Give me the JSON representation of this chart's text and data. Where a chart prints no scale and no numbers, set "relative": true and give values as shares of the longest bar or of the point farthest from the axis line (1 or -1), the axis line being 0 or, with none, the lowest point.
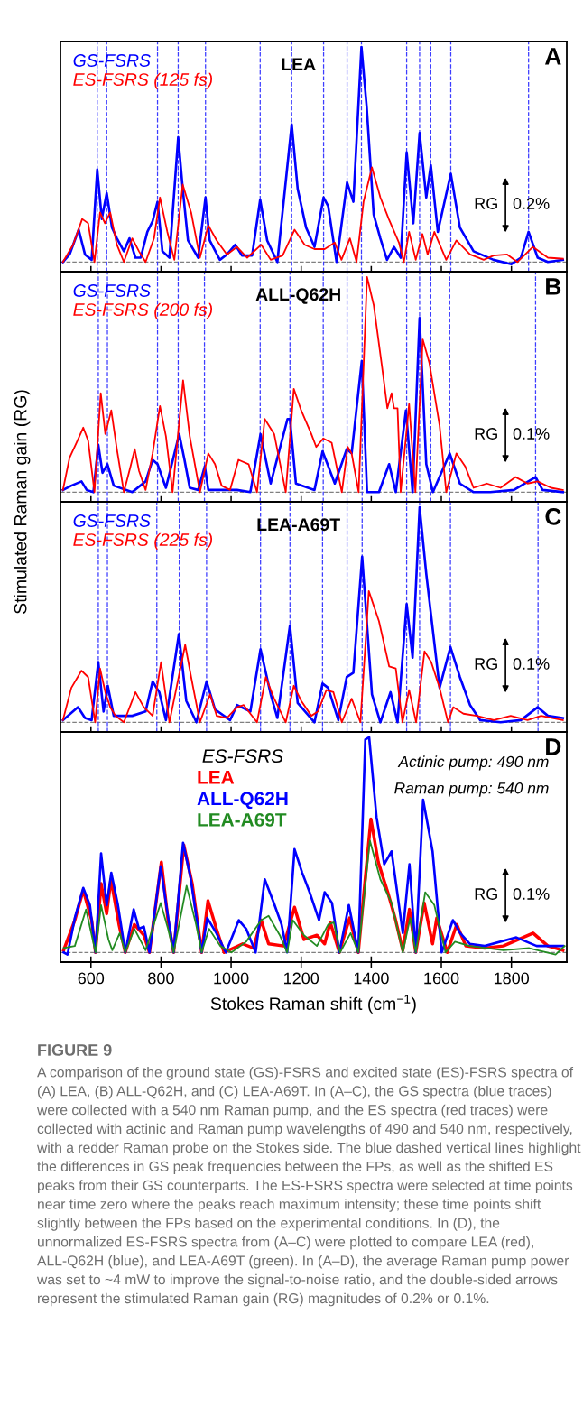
{
  "chart_data": [
    {
      "type": "line",
      "title": "LEA",
      "relative": true,
      "xlim": [
        513,
        1958
      ],
      "xticks": [
        600,
        800,
        1000,
        1200,
        1400,
        1600,
        1800
      ],
      "tick_labels": false,
      "legend": "top left",
      "marker": "none",
      "line_style": "solid",
      "grid": false,
      "annotations": [
        "A",
        "RG",
        "0.2%"
      ],
      "ref_lines": [
        {
          "axis": "y",
          "value": 0,
          "color": "#808080",
          "line_style": "dashed"
        },
        {
          "axis": "x",
          "value": 618,
          "color": "#3c3cff",
          "line_style": "dashed"
        },
        {
          "axis": "x",
          "value": 645,
          "color": "#3c3cff",
          "line_style": "dashed"
        },
        {
          "axis": "x",
          "value": 790,
          "color": "#3c3cff",
          "line_style": "dashed"
        },
        {
          "axis": "x",
          "value": 849,
          "color": "#3c3cff",
          "line_style": "dashed"
        },
        {
          "axis": "x",
          "value": 927,
          "color": "#3c3cff",
          "line_style": "dashed"
        },
        {
          "axis": "x",
          "value": 1083,
          "color": "#3c3cff",
          "line_style": "dashed"
        },
        {
          "axis": "x",
          "value": 1173,
          "color": "#3c3cff",
          "line_style": "dashed"
        },
        {
          "axis": "x",
          "value": 1264,
          "color": "#3c3cff",
          "line_style": "dashed"
        },
        {
          "axis": "x",
          "value": 1331,
          "color": "#3c3cff",
          "line_style": "dashed"
        },
        {
          "axis": "x",
          "value": 1372,
          "color": "#3c3cff",
          "line_style": "dashed"
        },
        {
          "axis": "x",
          "value": 1501,
          "color": "#3c3cff",
          "line_style": "dashed"
        },
        {
          "axis": "x",
          "value": 1538,
          "color": "#3c3cff",
          "line_style": "dashed"
        },
        {
          "axis": "x",
          "value": 1570,
          "color": "#3c3cff",
          "line_style": "dashed"
        },
        {
          "axis": "x",
          "value": 1627,
          "color": "#3c3cff",
          "line_style": "dashed"
        },
        {
          "axis": "x",
          "value": 1849,
          "color": "#3c3cff",
          "line_style": "dashed"
        }
      ],
      "series": [
        {
          "name": "GS-FSRS",
          "color": "#0000ff",
          "x": [
            520,
            539,
            565,
            583,
            602,
            618,
            631,
            645,
            660,
            674,
            694,
            710,
            727,
            742,
            761,
            776,
            790,
            804,
            824,
            849,
            862,
            877,
            906,
            927,
            939,
            968,
            988,
            1012,
            1031,
            1060,
            1083,
            1103,
            1132,
            1173,
            1190,
            1214,
            1238,
            1264,
            1277,
            1301,
            1331,
            1349,
            1372,
            1387,
            1407,
            1426,
            1445,
            1465,
            1484,
            1501,
            1520,
            1538,
            1557,
            1570,
            1590,
            1627,
            1653,
            1692,
            1749,
            1800,
            1827,
            1849,
            1875,
            1904,
            1947
          ],
          "values": [
            0,
            0.035,
            0.15,
            0.035,
            0.01,
            0.43,
            0.2,
            0.32,
            0.16,
            0.11,
            0.05,
            0.11,
            0.02,
            0.02,
            0.14,
            0.19,
            0.28,
            0.05,
            0.02,
            0.58,
            0.34,
            0.1,
            0.02,
            0.3,
            0.1,
            0.01,
            0.035,
            0.08,
            0.03,
            0.03,
            0.29,
            0.1,
            0,
            0.64,
            0.34,
            0.16,
            0.07,
            0.3,
            0.26,
            0,
            0.37,
            0.28,
            1.0,
            0.72,
            0.22,
            0.11,
            0.01,
            0.07,
            0.02,
            0.51,
            0.18,
            0.6,
            0.3,
            0.45,
            0.14,
            0.41,
            0.16,
            0.05,
            0.01,
            -0.01,
            0.02,
            0.14,
            0.02,
            0,
            0.01
          ]
        },
        {
          "name": "ES-FSRS (125 fs)",
          "color": "#ff0000",
          "x": [
            520,
            549,
            575,
            592,
            610,
            626,
            640,
            655,
            674,
            694,
            718,
            737,
            756,
            780,
            797,
            818,
            838,
            862,
            886,
            911,
            935,
            959,
            988,
            1017,
            1046,
            1086,
            1113,
            1147,
            1181,
            1210,
            1238,
            1267,
            1296,
            1315,
            1339,
            1358,
            1378,
            1402,
            1426,
            1450,
            1479,
            1493,
            1508,
            1527,
            1546,
            1561,
            1580,
            1614,
            1643,
            1682,
            1721,
            1749,
            1788,
            1817,
            1861,
            1904,
            1947
          ],
          "values": [
            0,
            0.08,
            0.2,
            0.18,
            0,
            0.23,
            0.18,
            0.23,
            0.08,
            0,
            0.11,
            0.05,
            0,
            0.11,
            0.3,
            0.14,
            0.01,
            0.36,
            0.23,
            0.02,
            0.17,
            0.1,
            0.035,
            0.07,
            0.02,
            0.08,
            0.01,
            0.03,
            0.15,
            0.08,
            0.06,
            0.06,
            0.09,
            0.01,
            0.11,
            0,
            0.28,
            0.44,
            0.3,
            0.2,
            0.09,
            0,
            0.14,
            0.01,
            0.13,
            0.035,
            0.14,
            0.01,
            0.1,
            0.035,
            0.01,
            0.03,
            0.035,
            0,
            0.07,
            0.02,
            0.015
          ]
        }
      ]
    },
    {
      "type": "line",
      "title": "ALL-Q62H",
      "ylabel": "Stimulated Raman gain (RG)",
      "relative": true,
      "xlim": [
        513,
        1958
      ],
      "xticks": [
        600,
        800,
        1000,
        1200,
        1400,
        1600,
        1800
      ],
      "tick_labels": false,
      "legend": "top left",
      "marker": "none",
      "line_style": "solid",
      "grid": false,
      "annotations": [
        "B",
        "RG",
        "0.1%"
      ],
      "ref_lines": [
        {
          "axis": "y",
          "value": 0,
          "color": "#808080",
          "line_style": "dashed"
        },
        {
          "axis": "x",
          "value": 621,
          "color": "#3c3cff",
          "line_style": "dashed"
        },
        {
          "axis": "x",
          "value": 647,
          "color": "#3c3cff",
          "line_style": "dashed"
        },
        {
          "axis": "x",
          "value": 790,
          "color": "#3c3cff",
          "line_style": "dashed"
        },
        {
          "axis": "x",
          "value": 849,
          "color": "#3c3cff",
          "line_style": "dashed"
        },
        {
          "axis": "x",
          "value": 924,
          "color": "#3c3cff",
          "line_style": "dashed"
        },
        {
          "axis": "x",
          "value": 1083,
          "color": "#3c3cff",
          "line_style": "dashed"
        },
        {
          "axis": "x",
          "value": 1168,
          "color": "#3c3cff",
          "line_style": "dashed"
        },
        {
          "axis": "x",
          "value": 1263,
          "color": "#3c3cff",
          "line_style": "dashed"
        },
        {
          "axis": "x",
          "value": 1331,
          "color": "#3c3cff",
          "line_style": "dashed"
        },
        {
          "axis": "x",
          "value": 1374,
          "color": "#3c3cff",
          "line_style": "dashed"
        },
        {
          "axis": "x",
          "value": 1501,
          "color": "#3c3cff",
          "line_style": "dashed"
        },
        {
          "axis": "x",
          "value": 1538,
          "color": "#3c3cff",
          "line_style": "dashed"
        },
        {
          "axis": "x",
          "value": 1570,
          "color": "#3c3cff",
          "line_style": "dashed"
        },
        {
          "axis": "x",
          "value": 1624,
          "color": "#3c3cff",
          "line_style": "dashed"
        },
        {
          "axis": "x",
          "value": 1869,
          "color": "#3c3cff",
          "line_style": "dashed"
        }
      ],
      "series": [
        {
          "name": "GS-FSRS",
          "color": "#0000ff",
          "x": [
            520,
            544,
            573,
            588,
            607,
            621,
            633,
            647,
            665,
            718,
            756,
            776,
            790,
            814,
            852,
            867,
            882,
            906,
            925,
            935,
            978,
            1017,
            1055,
            1084,
            1113,
            1161,
            1168,
            1185,
            1238,
            1261,
            1296,
            1330,
            1344,
            1373,
            1388,
            1422,
            1451,
            1470,
            1499,
            1518,
            1538,
            1557,
            1576,
            1624,
            1653,
            1692,
            1740,
            1807,
            1869,
            1889,
            1947
          ],
          "values": [
            0.01,
            0.03,
            0.05,
            0.01,
            0,
            0.22,
            0.09,
            0.13,
            0.03,
            0,
            0.05,
            0.15,
            0.13,
            0.02,
            0.27,
            0.15,
            0.02,
            0.01,
            0.12,
            0.01,
            0.01,
            0.01,
            0,
            0.27,
            0.04,
            0.34,
            0.34,
            0.04,
            0.01,
            0.19,
            0.04,
            0.2,
            0.18,
            0.61,
            0,
            0,
            0.13,
            0,
            0.38,
            0,
            0.81,
            0.13,
            0,
            0.18,
            0.04,
            0,
            0,
            0.01,
            0.07,
            0.01,
            0
          ]
        },
        {
          "name": "ES-FSRS (200 fs)",
          "color": "#ff0000",
          "x": [
            520,
            539,
            559,
            578,
            592,
            610,
            628,
            641,
            658,
            674,
            694,
            713,
            725,
            737,
            756,
            776,
            797,
            814,
            833,
            863,
            882,
            911,
            935,
            954,
            973,
            997,
            1021,
            1050,
            1074,
            1096,
            1123,
            1156,
            1179,
            1200,
            1229,
            1243,
            1263,
            1287,
            1316,
            1333,
            1344,
            1364,
            1388,
            1407,
            1431,
            1446,
            1458,
            1465,
            1475,
            1484,
            1508,
            1526,
            1547,
            1566,
            1595,
            1614,
            1643,
            1668,
            1692,
            1730,
            1769,
            1812,
            1846,
            1875,
            1913,
            1947
          ],
          "values": [
            0.01,
            0.16,
            0.23,
            0.3,
            0.24,
            0,
            0.46,
            0.27,
            0.38,
            0.2,
            0,
            0.12,
            0.2,
            0.1,
            0.01,
            0.18,
            0.4,
            0.26,
            0,
            0.52,
            0.26,
            0,
            0.18,
            0.13,
            0.03,
            0.01,
            0.15,
            0.13,
            0,
            0.34,
            0.27,
            0,
            0.48,
            0.38,
            0.27,
            0.21,
            0.25,
            0.23,
            0,
            0.21,
            0.18,
            0,
            1.0,
            0.87,
            0.58,
            0.39,
            0.46,
            0.39,
            0.39,
            0,
            0.41,
            0,
            0.71,
            0.6,
            0.31,
            0,
            0.18,
            0.12,
            0.02,
            0.04,
            0.02,
            0.07,
            0.04,
            0.05,
            0.02,
            0.01
          ]
        }
      ]
    },
    {
      "type": "line",
      "title": "LEA-A69T",
      "relative": true,
      "xlim": [
        513,
        1958
      ],
      "xticks": [
        600,
        800,
        1000,
        1200,
        1400,
        1600,
        1800
      ],
      "tick_labels": false,
      "legend": "top left",
      "marker": "none",
      "line_style": "solid",
      "grid": false,
      "annotations": [
        "C",
        "RG",
        "0.1%"
      ],
      "ref_lines": [
        {
          "axis": "y",
          "value": 0,
          "color": "#808080",
          "line_style": "dashed"
        },
        {
          "axis": "x",
          "value": 621,
          "color": "#3c3cff",
          "line_style": "dashed"
        },
        {
          "axis": "x",
          "value": 647,
          "color": "#3c3cff",
          "line_style": "dashed"
        },
        {
          "axis": "x",
          "value": 788,
          "color": "#3c3cff",
          "line_style": "dashed"
        },
        {
          "axis": "x",
          "value": 852,
          "color": "#3c3cff",
          "line_style": "dashed"
        },
        {
          "axis": "x",
          "value": 930,
          "color": "#3c3cff",
          "line_style": "dashed"
        },
        {
          "axis": "x",
          "value": 1084,
          "color": "#3c3cff",
          "line_style": "dashed"
        },
        {
          "axis": "x",
          "value": 1168,
          "color": "#3c3cff",
          "line_style": "dashed"
        },
        {
          "axis": "x",
          "value": 1261,
          "color": "#3c3cff",
          "line_style": "dashed"
        },
        {
          "axis": "x",
          "value": 1331,
          "color": "#3c3cff",
          "line_style": "dashed"
        },
        {
          "axis": "x",
          "value": 1374,
          "color": "#3c3cff",
          "line_style": "dashed"
        },
        {
          "axis": "x",
          "value": 1501,
          "color": "#3c3cff",
          "line_style": "dashed"
        },
        {
          "axis": "x",
          "value": 1538,
          "color": "#3c3cff",
          "line_style": "dashed"
        },
        {
          "axis": "x",
          "value": 1626,
          "color": "#3c3cff",
          "line_style": "dashed"
        },
        {
          "axis": "x",
          "value": 1876,
          "color": "#3c3cff",
          "line_style": "dashed"
        }
      ],
      "series": [
        {
          "name": "GS-FSRS",
          "color": "#0000ff",
          "x": [
            520,
            563,
            583,
            602,
            621,
            636,
            648,
            665,
            718,
            756,
            776,
            795,
            814,
            851,
            872,
            901,
            930,
            954,
            997,
            1017,
            1055,
            1084,
            1113,
            1132,
            1168,
            1190,
            1238,
            1261,
            1277,
            1306,
            1330,
            1349,
            1374,
            1402,
            1426,
            1455,
            1475,
            1501,
            1518,
            1538,
            1557,
            1595,
            1626,
            1653,
            1682,
            1711,
            1769,
            1827,
            1875,
            1904,
            1947
          ],
          "values": [
            0.01,
            0.07,
            0.02,
            0.01,
            0.28,
            0.05,
            0.17,
            0.03,
            0.03,
            0.05,
            0.19,
            0.14,
            0.01,
            0.41,
            0.1,
            0,
            0.19,
            0.06,
            0.01,
            0.08,
            0.05,
            0.34,
            0.13,
            0.02,
            0.45,
            0.09,
            0,
            0.18,
            0.16,
            0.01,
            0.21,
            0.23,
            0.77,
            0.13,
            0,
            0.14,
            0,
            0.55,
            0.3,
            1.0,
            0.69,
            0.16,
            0.35,
            0.21,
            0.08,
            0.01,
            0,
            0.01,
            0.07,
            0.03,
            0.02
          ]
        },
        {
          "name": "ES-FSRS (225 fs)",
          "color": "#ff0000",
          "x": [
            520,
            544,
            573,
            592,
            612,
            626,
            641,
            655,
            670,
            694,
            727,
            751,
            776,
            800,
            824,
            869,
            886,
            911,
            940,
            959,
            988,
            1017,
            1036,
            1074,
            1099,
            1123,
            1156,
            1179,
            1200,
            1229,
            1248,
            1272,
            1292,
            1316,
            1344,
            1369,
            1393,
            1422,
            1451,
            1470,
            1489,
            1508,
            1528,
            1552,
            1571,
            1595,
            1619,
            1634,
            1663,
            1701,
            1750,
            1798,
            1846,
            1885,
            1947
          ],
          "values": [
            0.01,
            0.16,
            0.24,
            0.21,
            0,
            0.25,
            0.14,
            0.07,
            0.03,
            0,
            0.14,
            0.07,
            0.03,
            0.28,
            0,
            0.36,
            0.21,
            0,
            0.13,
            0.03,
            0.02,
            0.07,
            0.08,
            0,
            0.21,
            0.11,
            0,
            0.17,
            0.1,
            0.03,
            0.05,
            0.15,
            0.14,
            0,
            0.11,
            0,
            0.61,
            0.47,
            0.26,
            0.25,
            0,
            0.15,
            0,
            0.33,
            0.28,
            0.16,
            0,
            0.07,
            0.04,
            0.03,
            0.01,
            0.03,
            0.01,
            0.03,
            0.01
          ]
        }
      ]
    },
    {
      "type": "line",
      "xlabel": "Stokes Raman shift (cm$^{−1}$)",
      "relative": true,
      "xlim": [
        513,
        1958
      ],
      "xticks": [
        600,
        800,
        1000,
        1200,
        1400,
        1600,
        1800
      ],
      "tick_labels": "x",
      "legend": "top",
      "legend_title": "ES-FSRS",
      "marker": "none",
      "line_style": "solid",
      "grid": false,
      "annotations": [
        "D",
        "RG",
        "0.1%",
        "Actinic pump: 490 nm",
        "Raman pump: 540 nm",
        "FIGURE 9",
        "A comparison of the ground state (GS)-FSRS and excited state (ES)-FSRS spectra of (A) LEA, (B) ALL-Q62H, and (C) LEA-A69T. In (A–C), the GS spectra (blue traces) were collected with a 540 nm Raman pump, and the ES spectra (red traces) were collected with actinic and Raman pump wavelengths of 490 and 540 nm, respectively, with a redder Raman probe on the Stokes side. The blue dashed vertical lines highlight the differences in GS peak frequencies between the FPs, as well as the shifted ES peaks from their GS counterparts. The ES-FSRS spectra were selected at time points near time zero where the peaks reach maximum intensity; these time points shift slightly between the FPs based on the experimental conditions. In (D), the unnormalized ES-FSRS spectra from (A–C) were plotted to compare LEA (red), ALL-Q62H (blue), and LEA-A69T (green). In (A–D), the average Raman pump power was set to ~4 mW to improve the signal-to-noise ratio, and the double-sided arrows represent the stimulated Raman gain (RG) magnitudes of 0.2% or 0.1%."
      ],
      "ref_lines": [
        {
          "axis": "y",
          "value": 0,
          "color": "#808080",
          "line_style": "dashed"
        }
      ],
      "series": [
        {
          "name": "LEA",
          "color": "#ff0000",
          "x": [
            522,
            554,
            578,
            602,
            613,
            629,
            645,
            657,
            680,
            698,
            724,
            751,
            767,
            801,
            820,
            836,
            865,
            889,
            916,
            934,
            958,
            980,
            1033,
            1064,
            1086,
            1107,
            1150,
            1181,
            1208,
            1245,
            1267,
            1283,
            1309,
            1338,
            1363,
            1399,
            1420,
            1447,
            1468,
            1490,
            1509,
            1527,
            1551,
            1575,
            1587,
            1617,
            1644,
            1670,
            1724,
            1777,
            1862,
            1904,
            1947
          ],
          "values": [
            0.01,
            0.15,
            0.29,
            0.15,
            0,
            0.32,
            0.18,
            0.34,
            0.13,
            0,
            0.13,
            0.08,
            0,
            0.42,
            0.15,
            0,
            0.5,
            0.32,
            0,
            0.24,
            0.11,
            0,
            0.04,
            0.02,
            0.15,
            0.04,
            0.03,
            0.21,
            0.06,
            0.08,
            0.04,
            0.14,
            0,
            0.16,
            0,
            0.62,
            0.42,
            0.28,
            0.16,
            0.01,
            0.2,
            0,
            0.23,
            0.04,
            0.16,
            0,
            0.13,
            0.03,
            0.02,
            0.03,
            0.09,
            0.03,
            0.01
          ]
        },
        {
          "name": "ALL-Q62H",
          "color": "#0000ff",
          "x": [
            522,
            533,
            554,
            578,
            597,
            613,
            629,
            645,
            658,
            677,
            698,
            722,
            737,
            751,
            767,
            799,
            815,
            836,
            863,
            884,
            916,
            932,
            958,
            985,
            1022,
            1043,
            1070,
            1096,
            1122,
            1144,
            1160,
            1181,
            1203,
            1224,
            1251,
            1267,
            1288,
            1309,
            1336,
            1363,
            1383,
            1394,
            1415,
            1437,
            1458,
            1490,
            1509,
            1527,
            1548,
            1575,
            1601,
            1633,
            1654,
            1681,
            1724,
            1814,
            1872,
            1947
          ],
          "values": [
            0,
            -0.01,
            0.16,
            0.3,
            0.22,
            0,
            0.46,
            0.22,
            0.37,
            0.22,
            0,
            0.2,
            0.11,
            0.12,
            0,
            0.4,
            0.22,
            0,
            0.51,
            0.35,
            0,
            0.16,
            0.09,
            0,
            0.15,
            0.11,
            0,
            0.34,
            0.23,
            0.13,
            0,
            0.48,
            0.37,
            0.28,
            0.15,
            0.28,
            0.23,
            0,
            0.22,
            0,
            0.99,
            1.0,
            0.63,
            0.41,
            0.47,
            0.09,
            0.41,
            0,
            0.71,
            0.47,
            0,
            0.15,
            0.09,
            0.04,
            0.03,
            0.07,
            0.03,
            0.03
          ]
        },
        {
          "name": "LEA-A69T",
          "color": "#228b22",
          "x": [
            522,
            554,
            586,
            613,
            629,
            650,
            661,
            682,
            698,
            724,
            756,
            799,
            820,
            836,
            873,
            900,
            916,
            937,
            969,
            1001,
            1043,
            1086,
            1107,
            1139,
            1160,
            1176,
            1208,
            1245,
            1277,
            1293,
            1311,
            1341,
            1363,
            1396,
            1426,
            1458,
            1490,
            1511,
            1527,
            1554,
            1580,
            1612,
            1639,
            1681,
            1777,
            1851,
            1926,
            1952
          ],
          "values": [
            0.02,
            0.03,
            0.2,
            0,
            0.22,
            0.06,
            0.01,
            0.09,
            0,
            0.11,
            0.01,
            0.23,
            0.11,
            0,
            0.31,
            0.13,
            0,
            0.11,
            0.03,
            0,
            0.05,
            0.15,
            0.17,
            0.08,
            0,
            0.15,
            0.08,
            0.03,
            0.13,
            0.14,
            0,
            0.09,
            0,
            0.52,
            0.34,
            0.23,
            0,
            0.16,
            0,
            0.28,
            0.22,
            0,
            0.05,
            0.03,
            0.01,
            0.02,
            -0.01,
            0.03
          ]
        }
      ]
    }
  ]
}
